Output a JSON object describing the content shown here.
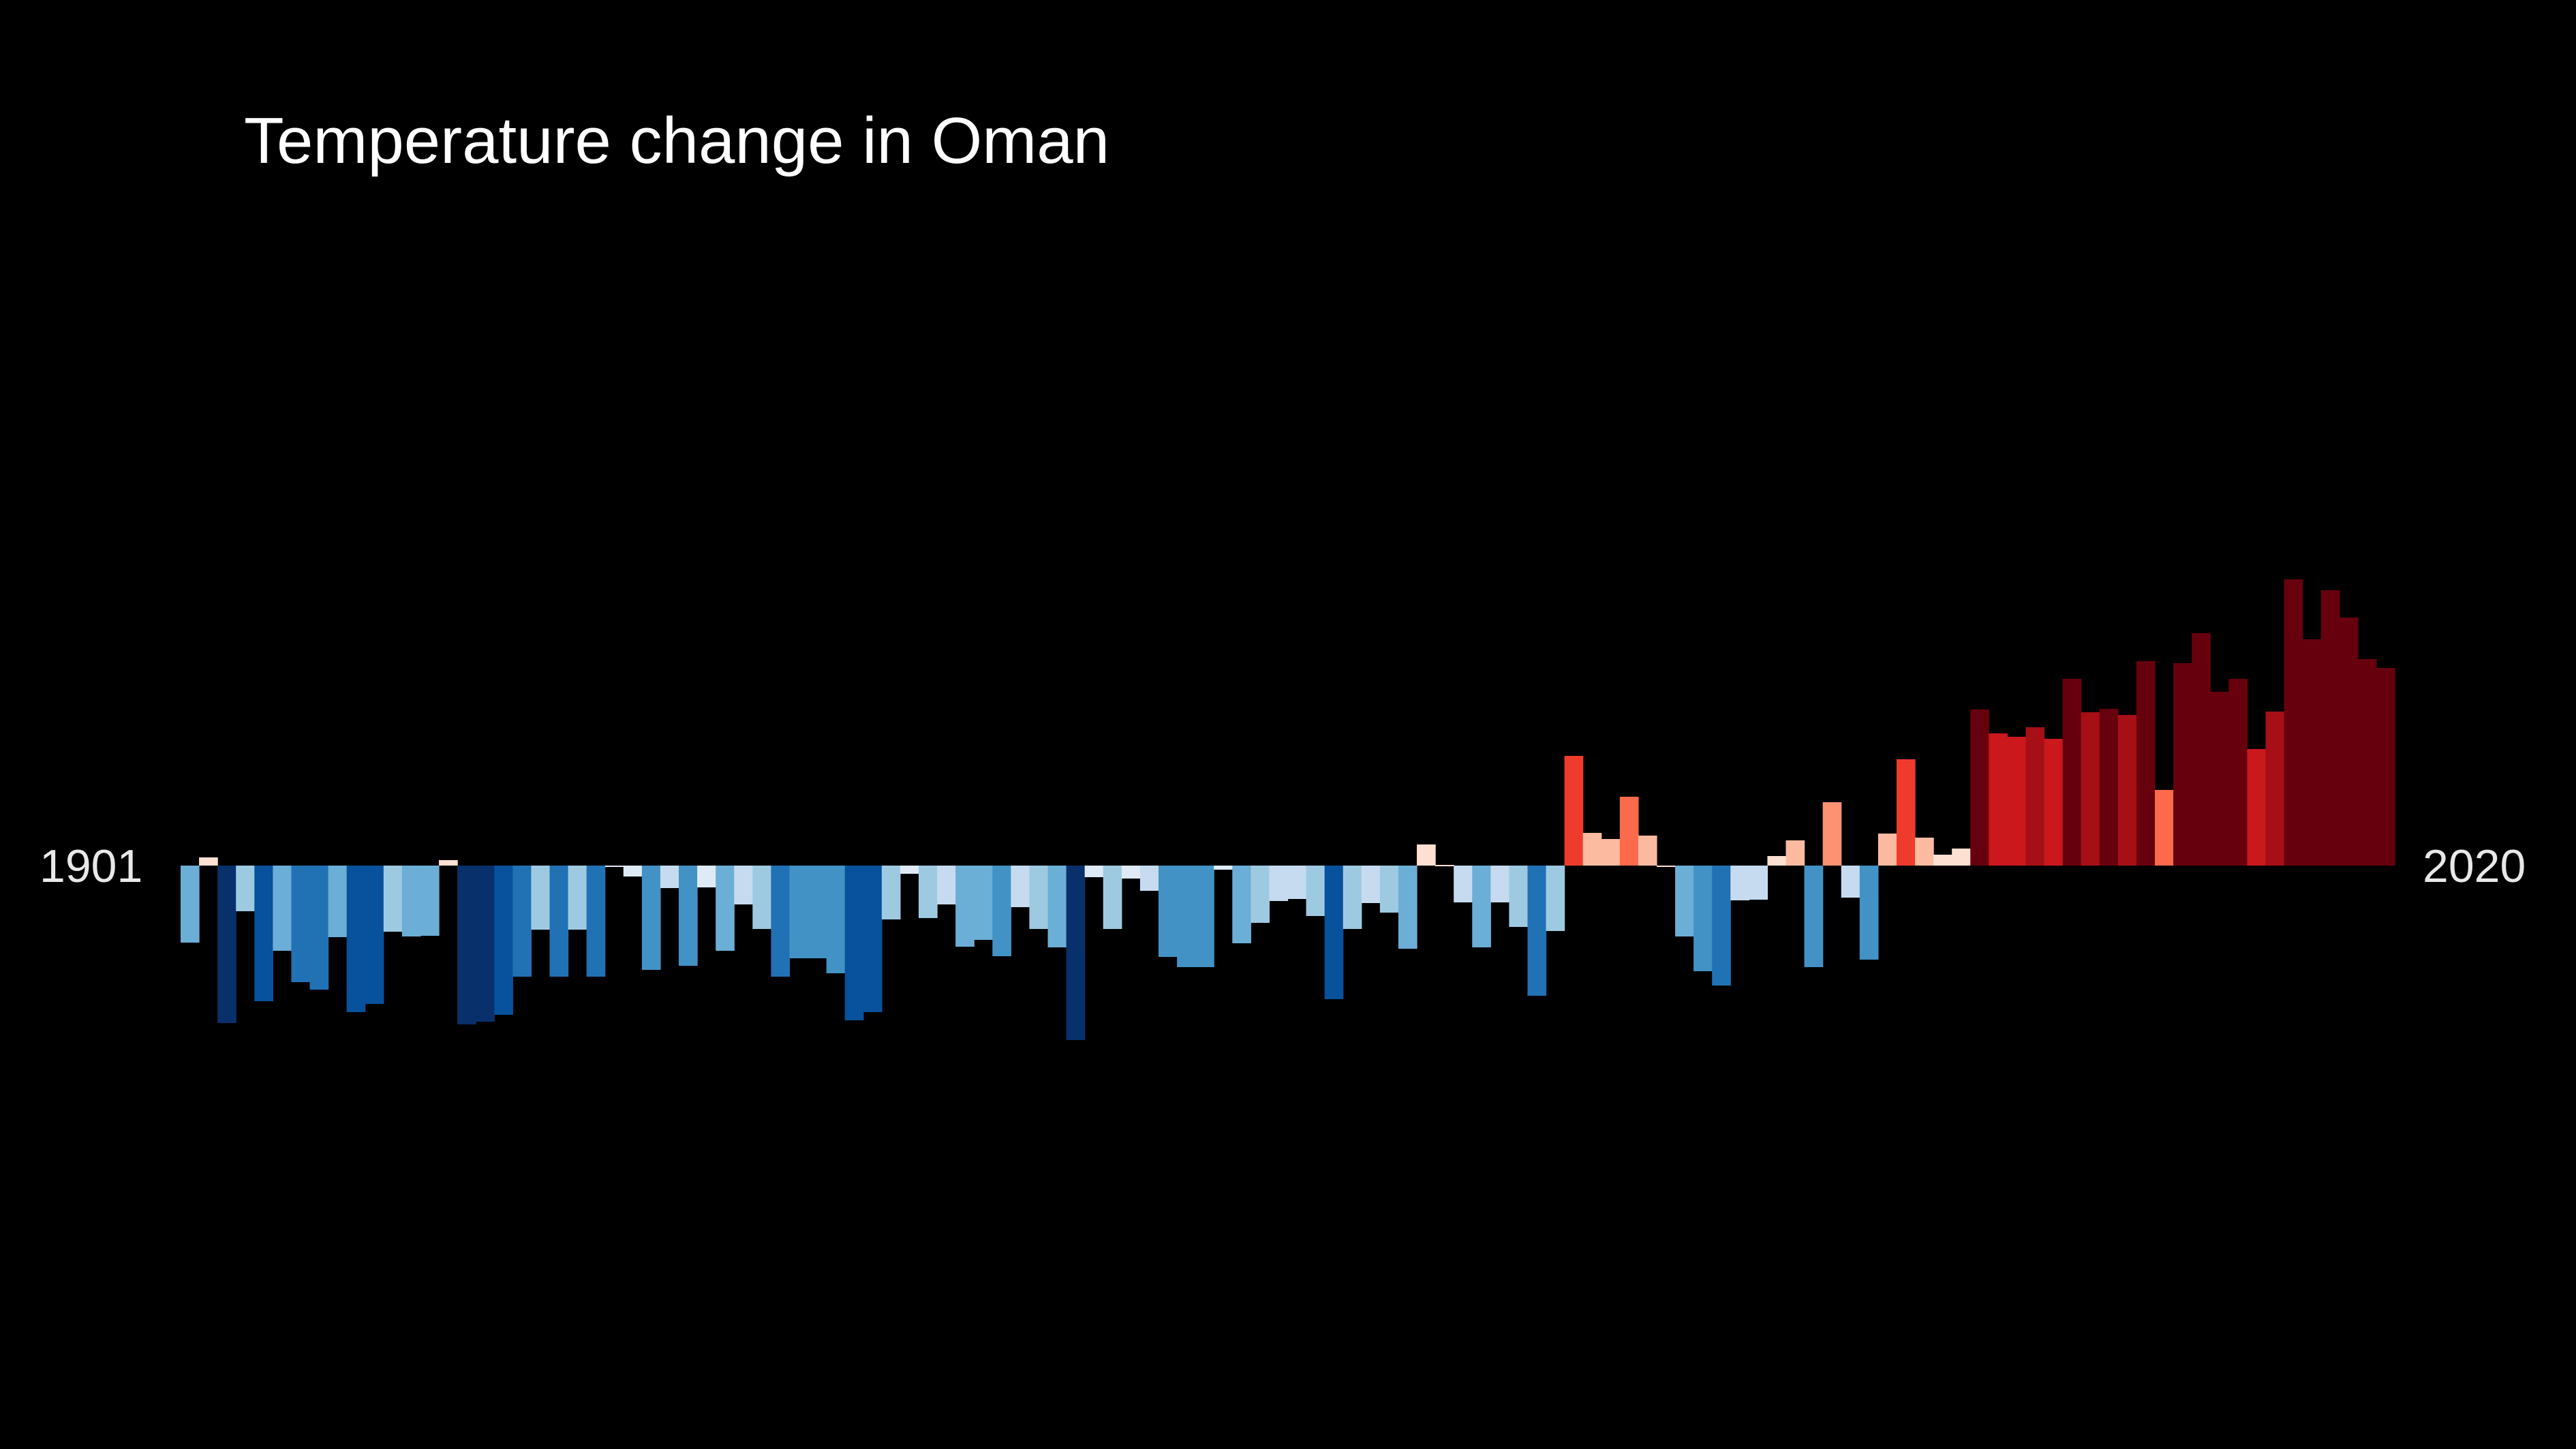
{
  "chart_data": {
    "type": "bar",
    "title": "Temperature change in Oman",
    "start_year_label": "1901",
    "end_year_label": "2020",
    "x": [
      1901,
      1902,
      1903,
      1904,
      1905,
      1906,
      1907,
      1908,
      1909,
      1910,
      1911,
      1912,
      1913,
      1914,
      1915,
      1916,
      1917,
      1918,
      1919,
      1920,
      1921,
      1922,
      1923,
      1924,
      1925,
      1926,
      1927,
      1928,
      1929,
      1930,
      1931,
      1932,
      1933,
      1934,
      1935,
      1936,
      1937,
      1938,
      1939,
      1940,
      1941,
      1942,
      1943,
      1944,
      1945,
      1946,
      1947,
      1948,
      1949,
      1950,
      1951,
      1952,
      1953,
      1954,
      1955,
      1956,
      1957,
      1958,
      1959,
      1960,
      1961,
      1962,
      1963,
      1964,
      1965,
      1966,
      1967,
      1968,
      1969,
      1970,
      1971,
      1972,
      1973,
      1974,
      1975,
      1976,
      1977,
      1978,
      1979,
      1980,
      1981,
      1982,
      1983,
      1984,
      1985,
      1986,
      1987,
      1988,
      1989,
      1990,
      1991,
      1992,
      1993,
      1994,
      1995,
      1996,
      1997,
      1998,
      1999,
      2000,
      2001,
      2002,
      2003,
      2004,
      2005,
      2006,
      2007,
      2008,
      2009,
      2010,
      2011,
      2012,
      2013,
      2014,
      2015,
      2016,
      2017,
      2018,
      2019,
      2020
    ],
    "values": [
      -0.565,
      0.06,
      -1.155,
      -0.335,
      -0.995,
      -0.625,
      -0.855,
      -0.91,
      -0.525,
      -1.075,
      -1.015,
      -0.485,
      -0.52,
      -0.515,
      0.04,
      -1.165,
      -1.145,
      -1.095,
      -0.815,
      -0.47,
      -0.815,
      -0.47,
      -0.815,
      -0.01,
      -0.08,
      -0.765,
      -0.165,
      -0.735,
      -0.16,
      -0.625,
      -0.285,
      -0.465,
      -0.815,
      -0.68,
      -0.68,
      -0.79,
      -1.135,
      -1.075,
      -0.395,
      -0.06,
      -0.385,
      -0.285,
      -0.595,
      -0.545,
      -0.665,
      -0.305,
      -0.465,
      -0.6,
      -1.28,
      -0.085,
      -0.465,
      -0.095,
      -0.185,
      -0.67,
      -0.745,
      -0.745,
      -0.03,
      -0.57,
      -0.42,
      -0.26,
      -0.245,
      -0.37,
      -0.98,
      -0.465,
      -0.275,
      -0.345,
      -0.61,
      0.155,
      0.005,
      -0.27,
      -0.6,
      -0.27,
      -0.45,
      -0.955,
      -0.48,
      0.805,
      0.24,
      0.195,
      0.505,
      0.22,
      0.0,
      -0.52,
      -0.775,
      -0.88,
      -0.255,
      -0.25,
      0.07,
      0.185,
      -0.745,
      0.465,
      -0.235,
      -0.69,
      0.235,
      0.78,
      0.205,
      0.08,
      0.125,
      1.145,
      0.97,
      0.945,
      1.015,
      0.93,
      1.37,
      1.125,
      1.15,
      1.105,
      1.5,
      0.555,
      1.485,
      1.705,
      1.275,
      1.37,
      0.855,
      1.13,
      2.1,
      1.66,
      2.02,
      1.82,
      1.515,
      1.45
    ],
    "ylim": [
      -1.45,
      2.25
    ],
    "colors": {
      "background": "#000000",
      "title": "#ffffff",
      "labels": "#e8e8e8",
      "scale": [
        "#08306b",
        "#08519c",
        "#2171b5",
        "#4292c6",
        "#6baed6",
        "#9ecae1",
        "#c6dbef",
        "#deebf7",
        "#fee0d2",
        "#fcbba1",
        "#fc9272",
        "#fb6a4a",
        "#ef3b2c",
        "#cb181d",
        "#a50f15",
        "#67000d"
      ]
    }
  }
}
